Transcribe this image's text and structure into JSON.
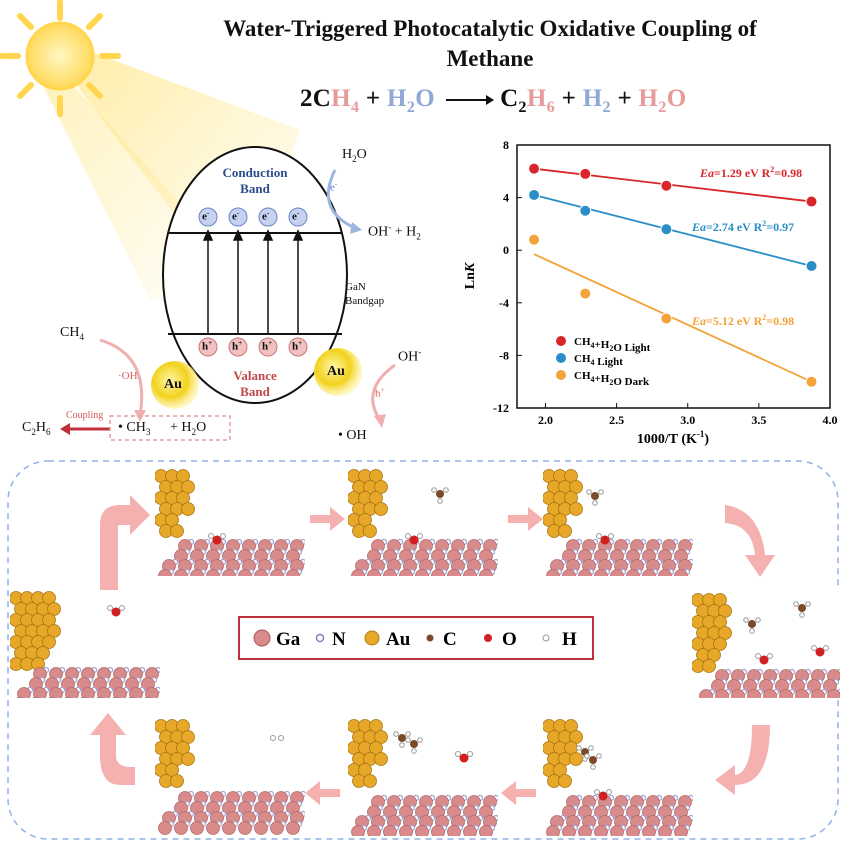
{
  "title_line1": "Water-Triggered Photocatalytic Oxidative Coupling of",
  "title_line2": "Methane",
  "equation": {
    "p1": "2C",
    "p2": "H",
    "p2s": "4",
    "p3": " + ",
    "p4": "H",
    "p4s": "2",
    "p5": "O",
    "p6": "C",
    "p6s": "2",
    "p7": "H",
    "p7s": "6",
    "p8": " + ",
    "p9": "H",
    "p9s": "2",
    "p10": " + ",
    "p11": "H",
    "p11s": "2",
    "p12": "O"
  },
  "diagram": {
    "conduction": "Conduction",
    "band": "Band",
    "valance": "Valance",
    "gan": "GaN",
    "bandgap": "Bandgap",
    "electron": "e",
    "hole": "h",
    "au": "Au",
    "h2o_top": "H",
    "oh_h2": "OH",
    "ch4": "CH",
    "oh_radical": "·OH",
    "coupling": "Coupling",
    "c2h6": "C",
    "ch3": "• CH",
    "h2o_bottom": "+  H",
    "oh_minus": "OH",
    "h_plus": "h",
    "oh_dot": "• OH"
  },
  "chart_data": {
    "type": "scatter",
    "xlabel": "1000/T (K",
    "ylabel": "Ln",
    "xlim": [
      1.8,
      4.0
    ],
    "ylim": [
      -12,
      8
    ],
    "xticks": [
      "2.0",
      "2.5",
      "3.0",
      "3.5",
      "4.0"
    ],
    "yticks": [
      "8",
      "4",
      "0",
      "-4",
      "-8",
      "-12"
    ],
    "legend_position": "lower-left",
    "series": [
      {
        "name": "CH4+H2O Light",
        "color": "#d9262b",
        "x": [
          1.92,
          2.28,
          2.85,
          3.87
        ],
        "y": [
          6.2,
          5.8,
          4.9,
          3.7
        ],
        "fit": [
          [
            1.92,
            6.2
          ],
          [
            3.87,
            3.7
          ]
        ],
        "annotation": "Ea=1.29 eV R2=0.98"
      },
      {
        "name": "CH4 Light",
        "color": "#2a8fc8",
        "x": [
          1.92,
          2.28,
          2.85,
          3.87
        ],
        "y": [
          4.2,
          3.0,
          1.6,
          -1.2
        ],
        "fit": [
          [
            1.92,
            4.2
          ],
          [
            3.87,
            -1.2
          ]
        ],
        "annotation": "Ea=2.74 eV R2=0.97"
      },
      {
        "name": "CH4+H2O Dark",
        "color": "#f3a338",
        "x": [
          1.92,
          2.28,
          2.85,
          3.87
        ],
        "y": [
          0.8,
          -3.3,
          -5.2,
          -10.0
        ],
        "fit": [
          [
            1.92,
            -0.3
          ],
          [
            3.87,
            -10.0
          ]
        ],
        "annotation": "Ea=5.12 eV R2=0.98"
      }
    ]
  },
  "legend_box": {
    "ga": "Ga",
    "n": "N",
    "au": "Au",
    "c": "C",
    "o": "O",
    "h": "H"
  },
  "colors": {
    "ga": "#d98a8a",
    "n": "#9ea6d8",
    "au": "#e7a82a",
    "c": "#7a4a2a",
    "o": "#d21f1f",
    "h": "#ffffff",
    "arrow": "#f08a8a"
  }
}
